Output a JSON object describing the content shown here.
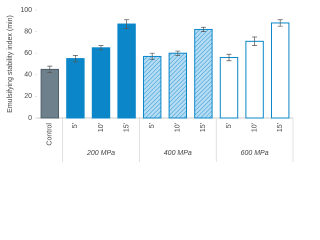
{
  "chart_data": {
    "type": "bar",
    "y_label": "Emulsifying stability index (min)",
    "ylim": [
      0,
      100
    ],
    "yticks": [
      0,
      20,
      40,
      60,
      80,
      100
    ],
    "control": {
      "label": "Control",
      "value": 45,
      "error": 3,
      "color": "#6e808c",
      "edge": "#4f5f6a"
    },
    "groups": [
      {
        "label": "200 MPa",
        "style": "solid",
        "color": "#0b87c9",
        "categories": [
          "5'",
          "10'",
          "15'"
        ],
        "values": [
          55,
          65,
          87
        ],
        "errors": [
          3,
          2,
          4
        ]
      },
      {
        "label": "400 MPa",
        "style": "hatched",
        "color": "#0b87c9",
        "categories": [
          "5'",
          "10'",
          "15'"
        ],
        "values": [
          57,
          60,
          82
        ],
        "errors": [
          3,
          2,
          2
        ]
      },
      {
        "label": "600 MPa",
        "style": "outline",
        "color": "#0b87c9",
        "categories": [
          "5'",
          "10'",
          "15'"
        ],
        "values": [
          56,
          71,
          88
        ],
        "errors": [
          3,
          4,
          3
        ]
      }
    ]
  }
}
